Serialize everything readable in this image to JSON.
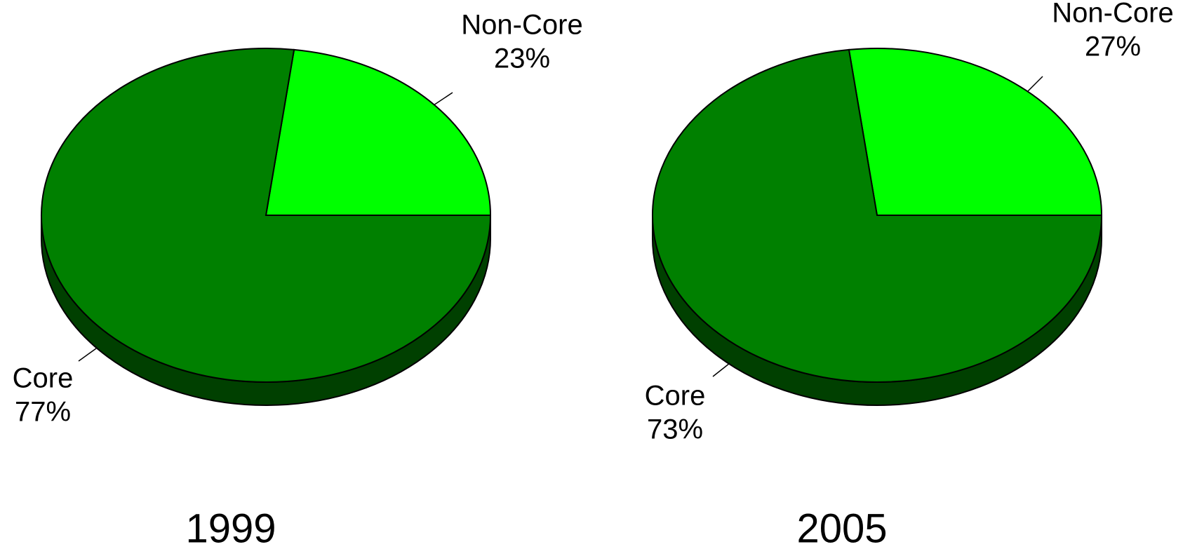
{
  "chart_data": [
    {
      "type": "pie",
      "title": "1999",
      "categories": [
        "Non-Core",
        "Core"
      ],
      "values": [
        23,
        77
      ],
      "value_labels": [
        "23%",
        "77%"
      ],
      "colors": [
        "#00ff00",
        "#008000"
      ]
    },
    {
      "type": "pie",
      "title": "2005",
      "categories": [
        "Non-Core",
        "Core"
      ],
      "values": [
        27,
        73
      ],
      "value_labels": [
        "27%",
        "73%"
      ],
      "colors": [
        "#00ff00",
        "#008000"
      ]
    }
  ]
}
